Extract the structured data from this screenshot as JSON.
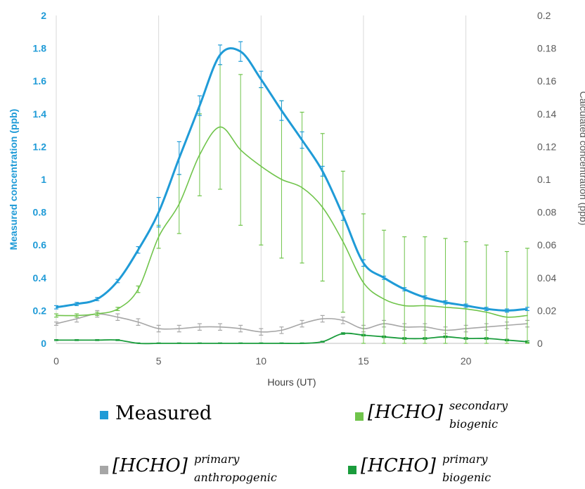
{
  "chart_data": {
    "type": "line",
    "xlabel": "Hours (UT)",
    "ylabel_left": "Measured concentration (ppb)",
    "ylabel_right": "Calculated concentration (ppb)",
    "xlim": [
      0,
      23
    ],
    "ylim_left": [
      0,
      2
    ],
    "ylim_right": [
      0,
      0.2
    ],
    "x_ticks": [
      "0",
      "5",
      "10",
      "15",
      "20"
    ],
    "y_ticks_left": [
      "0",
      "0.2",
      "0.4",
      "0.6",
      "0.8",
      "1",
      "1.2",
      "1.4",
      "1.6",
      "1.8",
      "2"
    ],
    "y_ticks_right": [
      "0",
      "0.02",
      "0.04",
      "0.06",
      "0.08",
      "0.1",
      "0.12",
      "0.14",
      "0.16",
      "0.18",
      "0.2"
    ],
    "grid": "vertical",
    "legend_position": "bottom",
    "series": [
      {
        "key": "measured",
        "name": "Measured",
        "axis": "left",
        "color": "#1f9bd7",
        "x": [
          0,
          1,
          2,
          3,
          4,
          5,
          6,
          7,
          8,
          9,
          10,
          11,
          12,
          13,
          14,
          15,
          16,
          17,
          18,
          19,
          20,
          21,
          22,
          23
        ],
        "y": [
          0.22,
          0.24,
          0.27,
          0.38,
          0.57,
          0.8,
          1.13,
          1.45,
          1.76,
          1.78,
          1.61,
          1.42,
          1.24,
          1.05,
          0.78,
          0.49,
          0.4,
          0.33,
          0.28,
          0.25,
          0.23,
          0.21,
          0.2,
          0.21
        ],
        "err": [
          0.01,
          0.01,
          0.01,
          0.01,
          0.02,
          0.09,
          0.1,
          0.06,
          0.06,
          0.06,
          0.05,
          0.06,
          0.05,
          0.03,
          0.03,
          0.02,
          0.01,
          0.01,
          0.01,
          0.01,
          0.01,
          0.01,
          0.01,
          0.01
        ]
      },
      {
        "key": "secondary_biogenic",
        "name": "[HCHO]",
        "name_sup": "secondary",
        "name_sub": "biogenic",
        "axis": "right",
        "color": "#70c44b",
        "x": [
          0,
          1,
          2,
          3,
          4,
          5,
          6,
          7,
          8,
          9,
          10,
          11,
          12,
          13,
          14,
          15,
          16,
          17,
          18,
          19,
          20,
          21,
          22,
          23
        ],
        "y": [
          0.017,
          0.017,
          0.018,
          0.021,
          0.033,
          0.065,
          0.085,
          0.115,
          0.132,
          0.118,
          0.108,
          0.1,
          0.095,
          0.083,
          0.062,
          0.037,
          0.027,
          0.023,
          0.023,
          0.022,
          0.021,
          0.019,
          0.016,
          0.017
        ],
        "err": [
          0.001,
          0.001,
          0.001,
          0.001,
          0.002,
          0.007,
          0.018,
          0.025,
          0.038,
          0.046,
          0.048,
          0.048,
          0.046,
          0.045,
          0.043,
          0.042,
          0.042,
          0.042,
          0.042,
          0.042,
          0.041,
          0.041,
          0.04,
          0.041
        ]
      },
      {
        "key": "primary_anthropogenic",
        "name": "[HCHO]",
        "name_sup": "primary",
        "name_sub": "anthropogenic",
        "axis": "right",
        "color": "#a6a6a6",
        "x": [
          0,
          1,
          2,
          3,
          4,
          5,
          6,
          7,
          8,
          9,
          10,
          11,
          12,
          13,
          14,
          15,
          16,
          17,
          18,
          19,
          20,
          21,
          22,
          23
        ],
        "y": [
          0.012,
          0.015,
          0.018,
          0.016,
          0.013,
          0.009,
          0.009,
          0.01,
          0.01,
          0.009,
          0.007,
          0.008,
          0.012,
          0.015,
          0.014,
          0.009,
          0.012,
          0.01,
          0.01,
          0.008,
          0.009,
          0.01,
          0.011,
          0.012
        ],
        "err": [
          0.001,
          0.002,
          0.002,
          0.002,
          0.002,
          0.002,
          0.002,
          0.002,
          0.002,
          0.002,
          0.002,
          0.002,
          0.002,
          0.002,
          0.002,
          0.002,
          0.002,
          0.002,
          0.002,
          0.002,
          0.002,
          0.002,
          0.002,
          0.002
        ]
      },
      {
        "key": "primary_biogenic",
        "name": "[HCHO]",
        "name_sup": "primary",
        "name_sub": "biogenic",
        "axis": "right",
        "color": "#1a9c3c",
        "x": [
          0,
          1,
          2,
          3,
          4,
          5,
          6,
          7,
          8,
          9,
          10,
          11,
          12,
          13,
          14,
          15,
          16,
          17,
          18,
          19,
          20,
          21,
          22,
          23
        ],
        "y": [
          0.002,
          0.002,
          0.002,
          0.002,
          0.0,
          0.0,
          0.0,
          0.0,
          0.0,
          0.0,
          0.0,
          0.0,
          0.0,
          0.001,
          0.006,
          0.005,
          0.004,
          0.003,
          0.003,
          0.004,
          0.003,
          0.003,
          0.002,
          0.001
        ],
        "err": [
          0.0003,
          0.0003,
          0.0003,
          0.0003,
          0.0003,
          0.0003,
          0.0003,
          0.0003,
          0.0003,
          0.0003,
          0.0003,
          0.0003,
          0.0003,
          0.0003,
          0.0005,
          0.0005,
          0.0005,
          0.0005,
          0.0005,
          0.0005,
          0.0005,
          0.0005,
          0.0005,
          0.0005
        ]
      }
    ]
  }
}
